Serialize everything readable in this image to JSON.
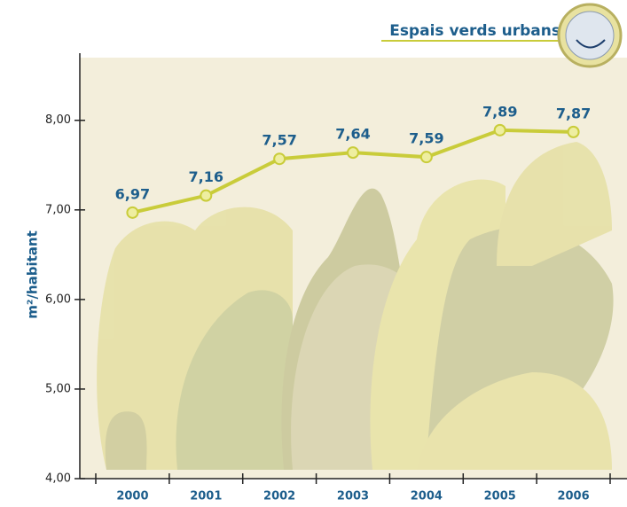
{
  "chart_data": {
    "type": "line",
    "title": "Espais verds urbans",
    "y_label": "m²/habitant",
    "categories": [
      "2000",
      "2001",
      "2002",
      "2003",
      "2004",
      "2005",
      "2006"
    ],
    "values": [
      6.97,
      7.16,
      7.57,
      7.64,
      7.59,
      7.89,
      7.87
    ],
    "value_labels": [
      "6,97",
      "7,16",
      "7,57",
      "7,64",
      "7,59",
      "7,89",
      "7,87"
    ],
    "color": "#c9cc3a",
    "ylim": [
      4,
      8.7
    ],
    "yticks": [
      {
        "value": 4,
        "label": "4,00"
      },
      {
        "value": 5,
        "label": "5,00"
      },
      {
        "value": 6,
        "label": "6,00"
      },
      {
        "value": 7,
        "label": "7,00"
      },
      {
        "value": 8,
        "label": "8,00"
      }
    ]
  }
}
